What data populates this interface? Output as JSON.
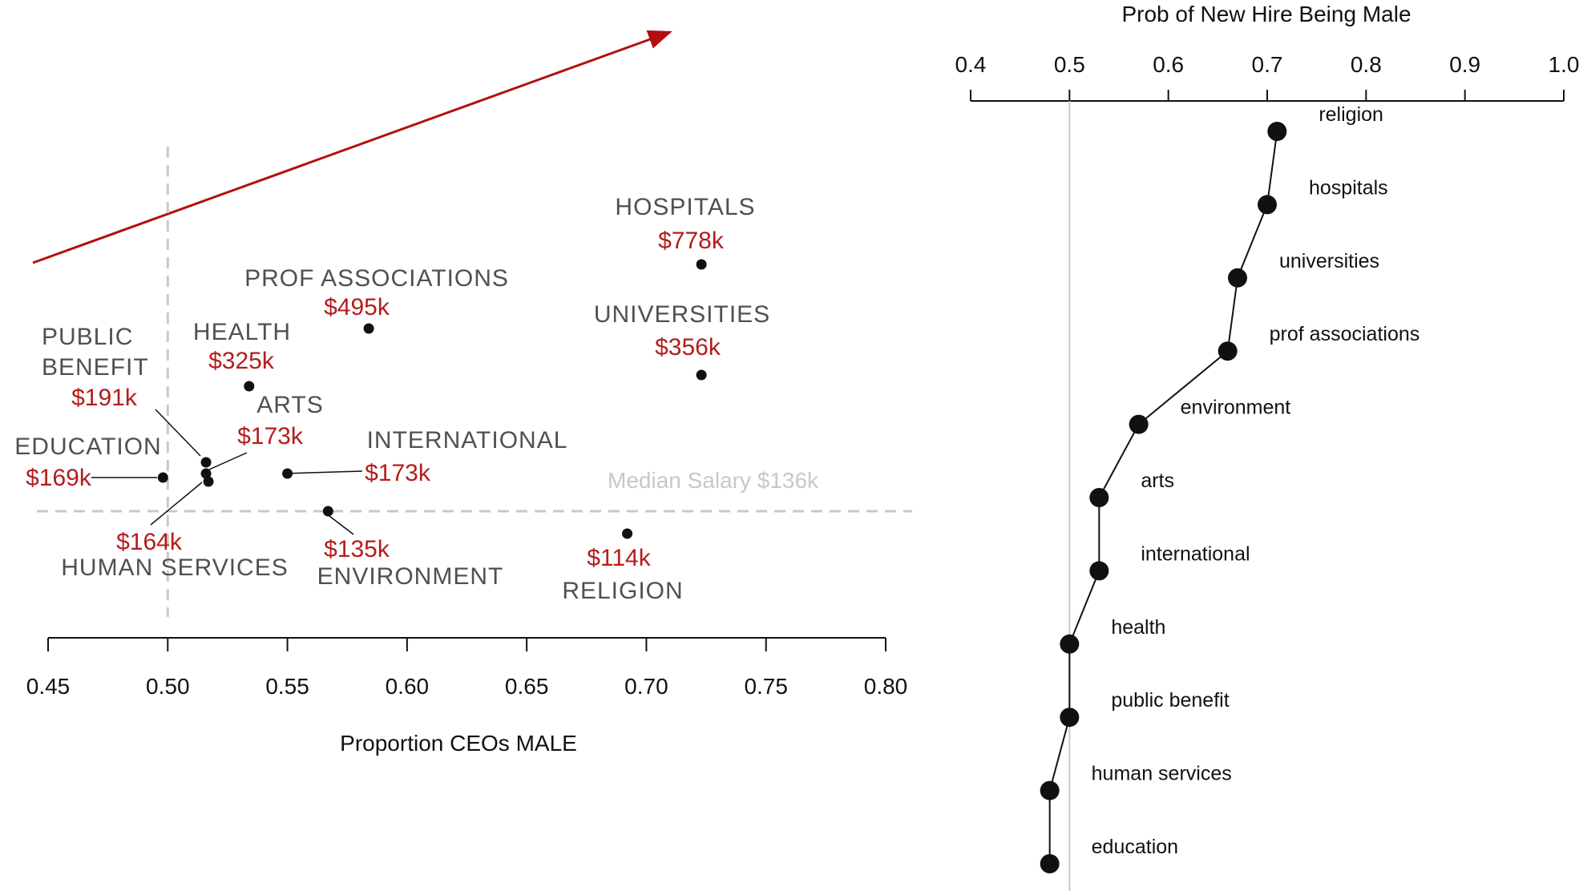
{
  "colors": {
    "accent": "#b30f0f",
    "salary": "#b41c1c",
    "category": "#505050",
    "guide": "#c8c8c8",
    "ink": "#111111"
  },
  "chart_data": [
    {
      "type": "scatter",
      "xlabel": "Proportion CEOs MALE",
      "xticks": [
        "0.45",
        "0.50",
        "0.55",
        "0.60",
        "0.65",
        "0.70",
        "0.75",
        "0.80"
      ],
      "xlim": [
        0.45,
        0.8
      ],
      "ylabel": "",
      "ylim": [
        100,
        800
      ],
      "median_label": "Median Salary $136k",
      "median_value": 136,
      "reference_x": 0.5,
      "points": [
        {
          "category": "HOSPITALS",
          "salary_label": "$778k",
          "x": 0.723,
          "y": 778
        },
        {
          "category": "PROF ASSOCIATIONS",
          "salary_label": "$495k",
          "x": 0.584,
          "y": 495
        },
        {
          "category": "UNIVERSITIES",
          "salary_label": "$356k",
          "x": 0.723,
          "y": 356
        },
        {
          "category": "HEALTH",
          "salary_label": "$325k",
          "x": 0.534,
          "y": 325
        },
        {
          "category": "PUBLIC BENEFIT",
          "salary_label": "$191k",
          "x": 0.516,
          "y": 191
        },
        {
          "category": "ARTS",
          "salary_label": "$173k",
          "x": 0.516,
          "y": 173
        },
        {
          "category": "INTERNATIONAL",
          "salary_label": "$173k",
          "x": 0.55,
          "y": 173
        },
        {
          "category": "EDUCATION",
          "salary_label": "$169k",
          "x": 0.498,
          "y": 169
        },
        {
          "category": "HUMAN SERVICES",
          "salary_label": "$164k",
          "x": 0.517,
          "y": 164
        },
        {
          "category": "ENVIRONMENT",
          "salary_label": "$135k",
          "x": 0.567,
          "y": 135
        },
        {
          "category": "RELIGION",
          "salary_label": "$114k",
          "x": 0.692,
          "y": 114
        }
      ]
    },
    {
      "type": "line",
      "title": "Prob of New Hire Being Male",
      "xticks": [
        "0.4",
        "0.5",
        "0.6",
        "0.7",
        "0.8",
        "0.9",
        "1.0"
      ],
      "xlim": [
        0.4,
        1.0
      ],
      "reference_x": 0.5,
      "categories": [
        "religion",
        "hospitals",
        "universities",
        "prof associations",
        "environment",
        "arts",
        "international",
        "health",
        "public benefit",
        "human services",
        "education"
      ],
      "values": [
        0.71,
        0.7,
        0.67,
        0.66,
        0.57,
        0.53,
        0.53,
        0.5,
        0.5,
        0.48,
        0.48
      ]
    }
  ]
}
